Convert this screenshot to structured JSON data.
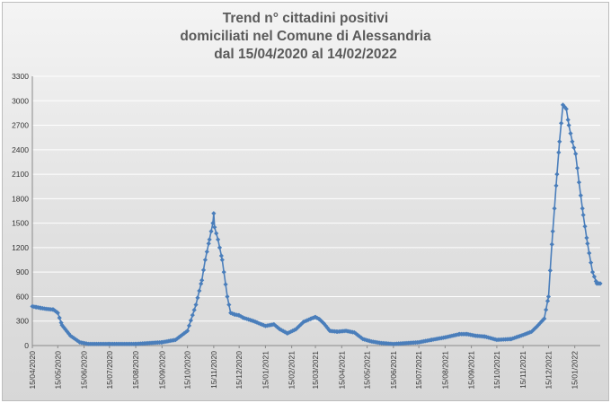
{
  "chart_data": {
    "type": "line",
    "title_lines": [
      "Trend n° cittadini positivi",
      "domiciliati nel Comune di Alessandria",
      "dal 15/04/2020 al 14/02/2022"
    ],
    "ylim": [
      0,
      3300
    ],
    "y_ticks": [
      0,
      300,
      600,
      900,
      1200,
      1500,
      1800,
      2100,
      2400,
      2700,
      3000,
      3300
    ],
    "x_tick_labels": [
      "15/04/2020",
      "15/05/2020",
      "15/06/2020",
      "15/07/2020",
      "15/08/2020",
      "15/09/2020",
      "15/10/2020",
      "15/11/2020",
      "15/12/2020",
      "15/01/2021",
      "15/02/2021",
      "15/03/2021",
      "15/04/2021",
      "15/05/2021",
      "15/06/2021",
      "15/07/2021",
      "15/08/2021",
      "15/09/2021",
      "15/10/2021",
      "15/11/2021",
      "15/12/2021",
      "15/01/2022"
    ],
    "x_range": [
      "2020-04-15",
      "2022-02-14"
    ],
    "grid": true,
    "legend": "none",
    "line_color": "#4a7ebb",
    "marker": "diamond",
    "series": [
      {
        "x": [
          "2020-04-15",
          "2020-04-20",
          "2020-04-25",
          "2020-05-01",
          "2020-05-10",
          "2020-05-15",
          "2020-05-20",
          "2020-05-30",
          "2020-06-10",
          "2020-06-20",
          "2020-07-15",
          "2020-08-15",
          "2020-09-15",
          "2020-10-01",
          "2020-10-15",
          "2020-10-25",
          "2020-11-01",
          "2020-11-05",
          "2020-11-10",
          "2020-11-14",
          "2020-11-15",
          "2020-11-16",
          "2020-11-20",
          "2020-11-25",
          "2020-12-01",
          "2020-12-05",
          "2020-12-10",
          "2020-12-15",
          "2020-12-20",
          "2021-01-01",
          "2021-01-15",
          "2021-01-25",
          "2021-02-01",
          "2021-02-10",
          "2021-02-20",
          "2021-03-01",
          "2021-03-10",
          "2021-03-15",
          "2021-03-20",
          "2021-03-25",
          "2021-04-01",
          "2021-04-10",
          "2021-04-20",
          "2021-04-30",
          "2021-05-10",
          "2021-05-20",
          "2021-06-01",
          "2021-06-15",
          "2021-07-01",
          "2021-07-15",
          "2021-07-30",
          "2021-08-15",
          "2021-09-01",
          "2021-09-10",
          "2021-09-20",
          "2021-10-01",
          "2021-10-15",
          "2021-11-01",
          "2021-11-15",
          "2021-11-25",
          "2021-12-01",
          "2021-12-10",
          "2021-12-15",
          "2021-12-20",
          "2021-12-25",
          "2021-12-28",
          "2022-01-01",
          "2022-01-05",
          "2022-01-08",
          "2022-01-12",
          "2022-01-16",
          "2022-01-20",
          "2022-01-25",
          "2022-01-30",
          "2022-02-05",
          "2022-02-10",
          "2022-02-14"
        ],
        "y": [
          480,
          470,
          460,
          450,
          440,
          400,
          250,
          120,
          40,
          20,
          20,
          20,
          40,
          70,
          180,
          500,
          800,
          1050,
          1300,
          1500,
          1620,
          1450,
          1300,
          1050,
          600,
          400,
          380,
          370,
          340,
          300,
          240,
          260,
          200,
          150,
          200,
          290,
          330,
          350,
          320,
          270,
          180,
          170,
          180,
          160,
          80,
          50,
          30,
          20,
          30,
          40,
          70,
          100,
          140,
          140,
          120,
          110,
          70,
          80,
          130,
          170,
          230,
          330,
          600,
          1400,
          2100,
          2500,
          2950,
          2900,
          2700,
          2500,
          2350,
          2000,
          1600,
          1250,
          900,
          760,
          760
        ]
      }
    ]
  }
}
